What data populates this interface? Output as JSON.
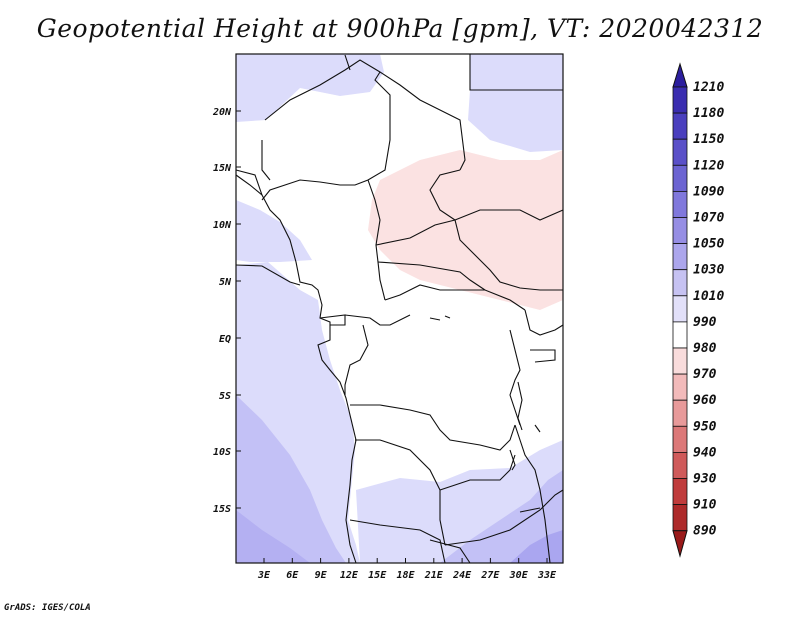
{
  "title": "Geopotential Height at 900hPa [gpm], VT: 2020042312",
  "footer": "GrADS: IGES/COLA",
  "map": {
    "lat_labels": [
      "20N",
      "15N",
      "10N",
      "5N",
      "EQ",
      "5S",
      "10S",
      "15S"
    ],
    "lon_labels": [
      "3E",
      "6E",
      "9E",
      "12E",
      "15E",
      "18E",
      "21E",
      "24E",
      "27E",
      "30E",
      "33E"
    ]
  },
  "colorbar": {
    "levels": [
      "1210",
      "1180",
      "1150",
      "1120",
      "1090",
      "1070",
      "1050",
      "1030",
      "1010",
      "990",
      "980",
      "970",
      "960",
      "950",
      "940",
      "930",
      "910",
      "890"
    ],
    "colors": [
      "#2c1e9e",
      "#3a2db0",
      "#4a3fbe",
      "#5a50c8",
      "#6c64d2",
      "#8078dc",
      "#968ee4",
      "#aca6ec",
      "#c6c2f2",
      "#e2e0f9",
      "#ffffff",
      "#f9dcdc",
      "#f2baba",
      "#e89a9a",
      "#dc7878",
      "#cf5a5a",
      "#c03c3c",
      "#ad2a2a",
      "#9a1a1a"
    ]
  }
}
